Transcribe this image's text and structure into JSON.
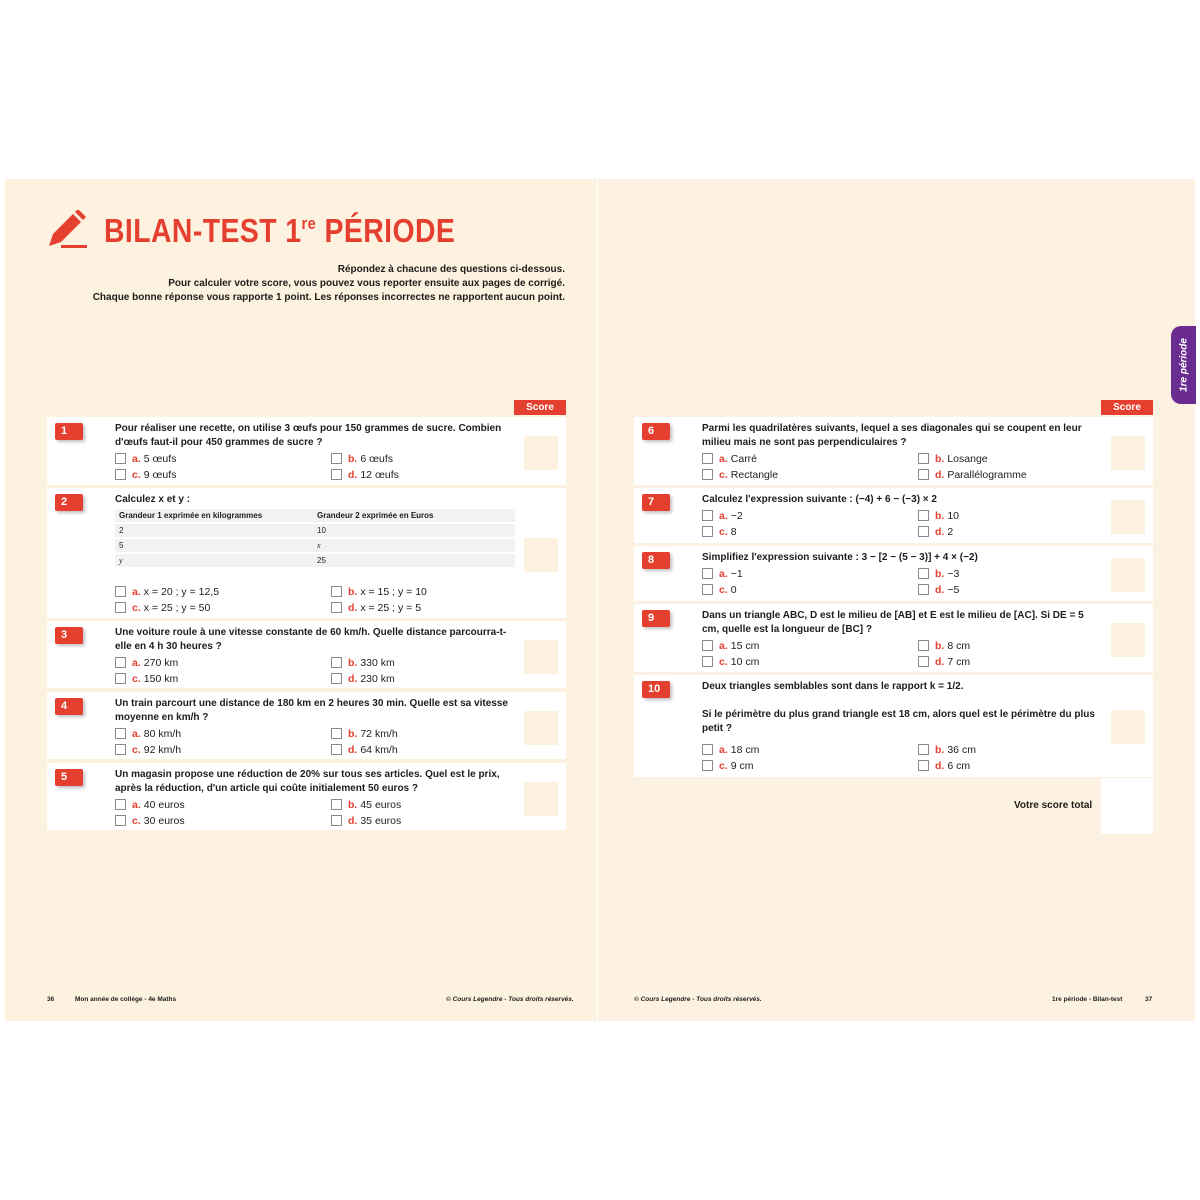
{
  "title": {
    "main": "BILAN-TEST 1",
    "sup": "re",
    "rest": " PÉRIODE"
  },
  "intro": [
    "Répondez à chacune des questions ci-dessous.",
    "Pour calculer votre score, vous pouvez vous reporter ensuite aux pages de corrigé.",
    "Chaque bonne réponse vous rapporte 1 point. Les réponses incorrectes ne rapportent aucun point."
  ],
  "score_label": "Score",
  "side_tab": "1re période",
  "accent_color": "#e5402f",
  "tab_color": "#6b2c91",
  "questions": [
    {
      "num": "1",
      "text": "Pour réaliser une recette, on utilise 3 œufs pour 150 grammes de sucre. Combien d'œufs faut-il pour 450 grammes de sucre ?",
      "options": [
        [
          "a.",
          "5 œufs"
        ],
        [
          "b.",
          "6 œufs"
        ],
        [
          "c.",
          "9 œufs"
        ],
        [
          "d.",
          "12 œufs"
        ]
      ]
    },
    {
      "num": "2",
      "text": "Calculez x et y :",
      "table": {
        "headers": [
          "Grandeur 1 exprimée en kilogrammes",
          "Grandeur 2 exprimée en Euros"
        ],
        "rows": [
          [
            "2",
            "10"
          ],
          [
            "5",
            "x"
          ],
          [
            "y",
            "25"
          ]
        ]
      },
      "options": [
        [
          "a.",
          "x = 20 ; y = 12,5"
        ],
        [
          "b.",
          "x = 15 ; y = 10"
        ],
        [
          "c.",
          "x = 25 ; y = 50"
        ],
        [
          "d.",
          "x = 25 ; y = 5"
        ]
      ]
    },
    {
      "num": "3",
      "text": "Une voiture roule à une vitesse constante de 60 km/h. Quelle distance parcourra-t-elle en 4 h 30 heures ?",
      "options": [
        [
          "a.",
          "270 km"
        ],
        [
          "b.",
          "330 km"
        ],
        [
          "c.",
          "150 km"
        ],
        [
          "d.",
          "230 km"
        ]
      ]
    },
    {
      "num": "4",
      "text": "Un train parcourt une distance de 180 km en 2 heures 30 min. Quelle est sa vitesse moyenne en km/h ?",
      "options": [
        [
          "a.",
          "80 km/h"
        ],
        [
          "b.",
          "72 km/h"
        ],
        [
          "c.",
          "92 km/h"
        ],
        [
          "d.",
          "64 km/h"
        ]
      ]
    },
    {
      "num": "5",
      "text": "Un magasin propose une réduction de 20% sur tous ses articles. Quel est le prix, après la réduction, d'un article qui coûte initialement 50 euros ?",
      "options": [
        [
          "a.",
          "40 euros"
        ],
        [
          "b.",
          "45 euros"
        ],
        [
          "c.",
          "30 euros"
        ],
        [
          "d.",
          "35 euros"
        ]
      ]
    },
    {
      "num": "6",
      "text": "Parmi les quadrilatères suivants, lequel a ses diagonales qui se coupent en leur milieu mais ne sont pas perpendiculaires ?",
      "options": [
        [
          "a.",
          "Carré"
        ],
        [
          "b.",
          "Losange"
        ],
        [
          "c.",
          "Rectangle"
        ],
        [
          "d.",
          "Parallélogramme"
        ]
      ]
    },
    {
      "num": "7",
      "text": "Calculez l'expression suivante : (−4) + 6 − (−3) × 2",
      "options": [
        [
          "a.",
          "−2"
        ],
        [
          "b.",
          "10"
        ],
        [
          "c.",
          "8"
        ],
        [
          "d.",
          "2"
        ]
      ]
    },
    {
      "num": "8",
      "text": "Simplifiez l'expression suivante : 3 − [2 − (5 − 3)] + 4 × (−2)",
      "options": [
        [
          "a.",
          "−1"
        ],
        [
          "b.",
          "−3"
        ],
        [
          "c.",
          "0"
        ],
        [
          "d.",
          "−5"
        ]
      ]
    },
    {
      "num": "9",
      "text": "Dans un triangle ABC, D est le milieu de [AB] et E est le milieu de [AC]. Si DE = 5 cm, quelle est la longueur de [BC] ?",
      "options": [
        [
          "a.",
          "15 cm"
        ],
        [
          "b.",
          "8 cm"
        ],
        [
          "c.",
          "10 cm"
        ],
        [
          "d.",
          "7 cm"
        ]
      ]
    },
    {
      "num": "10",
      "text": "Deux triangles semblables sont dans le rapport k = 1/2.",
      "text2": "Si le périmètre du plus grand triangle est 18 cm, alors quel est le périmètre du plus petit ?",
      "options": [
        [
          "a.",
          "18 cm"
        ],
        [
          "b.",
          "36 cm"
        ],
        [
          "c.",
          "9 cm"
        ],
        [
          "d.",
          "6 cm"
        ]
      ]
    }
  ],
  "total_label": "Votre score total",
  "footer": {
    "left_page_num": "36",
    "left_title": "Mon année de collège - 4e Maths",
    "copyright_left": "© Cours Legendre - Tous droits réservés.",
    "copyright_right": "© Cours Legendre - Tous droits réservés.",
    "right_title": "1re période - Bilan-test",
    "right_page_num": "37"
  }
}
